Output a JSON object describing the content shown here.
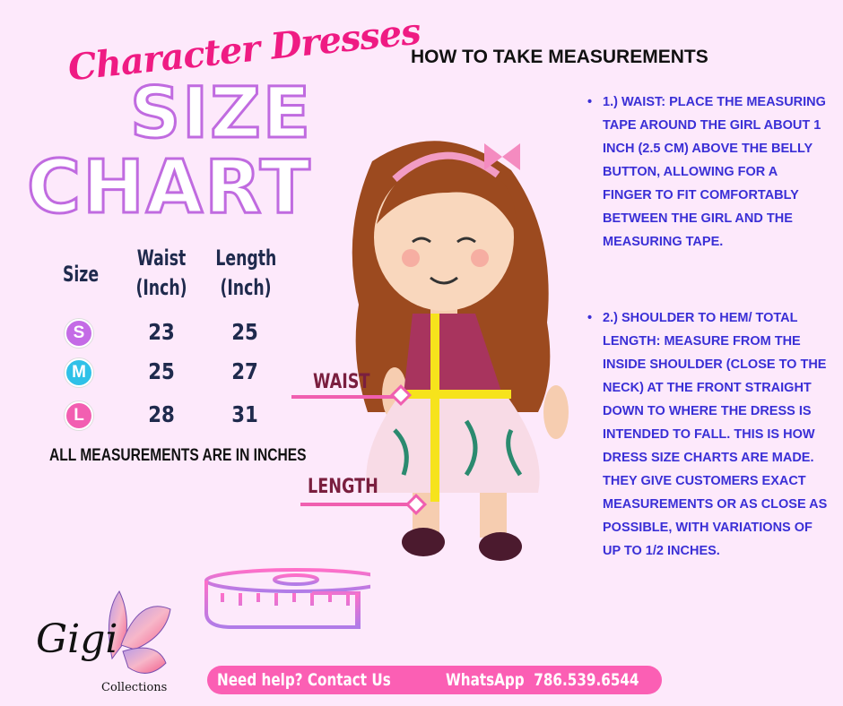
{
  "title": {
    "script": "Character Dresses",
    "line1": "SIZE",
    "line2": "CHART"
  },
  "table": {
    "headers": [
      {
        "l1": "Size",
        "l2": ""
      },
      {
        "l1": "Waist",
        "l2": "(Inch)"
      },
      {
        "l1": "Length",
        "l2": "(Inch)"
      }
    ],
    "rows": [
      {
        "size": "S",
        "waist": "23",
        "length": "25",
        "color": "#c46be6"
      },
      {
        "size": "M",
        "waist": "25",
        "length": "27",
        "color": "#2fc1e8"
      },
      {
        "size": "L",
        "waist": "28",
        "length": "31",
        "color": "#f25fb1"
      }
    ],
    "note": "ALL MEASUREMENTS ARE IN INCHES"
  },
  "instructions": {
    "heading": "HOW TO TAKE MEASUREMENTS",
    "items": [
      "1.) WAIST: PLACE THE MEASURING TAPE AROUND THE GIRL ABOUT 1 INCH (2.5 CM) ABOVE THE BELLY BUTTON, ALLOWING FOR A FINGER TO FIT COMFORTABLY BETWEEN THE GIRL AND THE MEASURING TAPE.",
      "2.) SHOULDER TO HEM/ TOTAL LENGTH: MEASURE FROM THE INSIDE SHOULDER (CLOSE TO THE NECK) AT THE FRONT STRAIGHT DOWN TO WHERE THE DRESS IS INTENDED TO FALL. THIS IS HOW DRESS SIZE CHARTS ARE MADE. THEY GIVE CUSTOMERS EXACT MEASUREMENTS OR AS CLOSE AS POSSIBLE, WITH VARIATIONS OF UP TO 1/2 INCHES."
    ]
  },
  "illustration": {
    "waist_label": "WAIST",
    "length_label": "LENGTH"
  },
  "logo": {
    "name": "Gigi",
    "sub": "Collections"
  },
  "footer": {
    "help": "Need help? Contact Us",
    "whatsapp": "WhatsApp  786.539.6544"
  },
  "colors": {
    "background": "#fde9fb",
    "accent_pink": "#ef1b83",
    "outline_purple": "#c06be0",
    "instruction_blue": "#3a2fd6",
    "footer_pink": "#fb5fb4"
  }
}
